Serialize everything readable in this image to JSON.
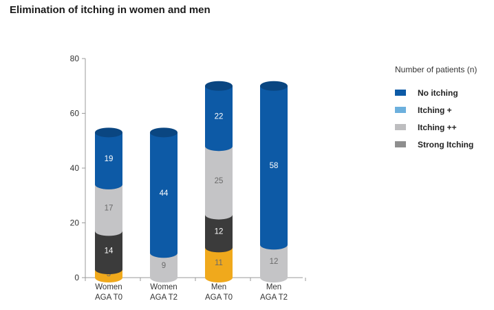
{
  "chart_data": {
    "type": "bar",
    "stacked": true,
    "title": "Elimination of itching in women and men",
    "legend_title": "Number of patients (n)",
    "categories": [
      [
        "Women",
        "AGA T0"
      ],
      [
        "Women",
        "AGA T2"
      ],
      [
        "Men",
        "AGA T0"
      ],
      [
        "Men",
        "AGA T2"
      ]
    ],
    "series": [
      {
        "name": "Strong Itching",
        "color": "#f0a91c",
        "values": [
          3,
          0,
          11,
          0
        ]
      },
      {
        "name": "Itching +",
        "color": "#3b3b3b",
        "values": [
          14,
          0,
          12,
          0
        ]
      },
      {
        "name": "Itching ++",
        "color": "#c4c4c6",
        "values": [
          17,
          9,
          25,
          12
        ]
      },
      {
        "name": "No itching",
        "color": "#0d5aa6",
        "values": [
          19,
          44,
          22,
          58
        ]
      }
    ],
    "legend": [
      {
        "name": "No itching",
        "color": "#0d5aa6"
      },
      {
        "name": "Itching +",
        "color": "#6cb0dd"
      },
      {
        "name": "Itching ++",
        "color": "#bdbdbf"
      },
      {
        "name": "Strong Itching",
        "color": "#8e8e8e"
      }
    ],
    "y_ticks": [
      0,
      20,
      40,
      60,
      80
    ],
    "ylim": [
      0,
      80
    ],
    "legend_position": "right"
  }
}
